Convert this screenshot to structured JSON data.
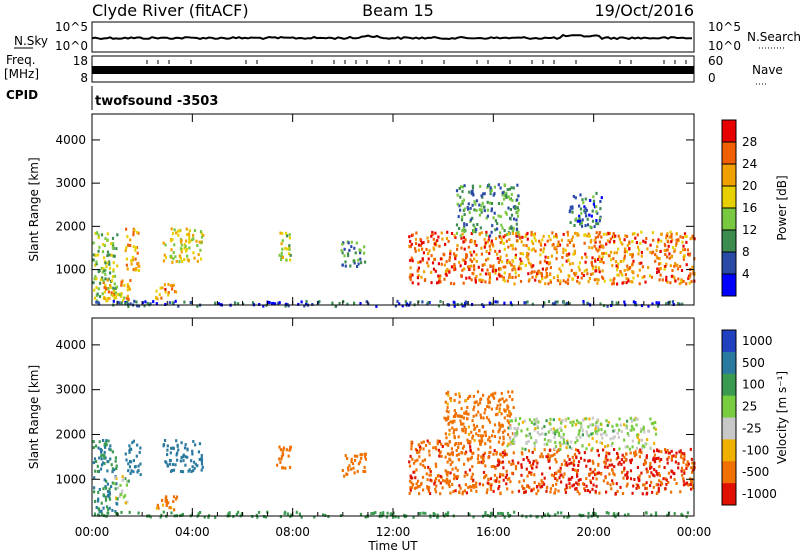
{
  "header": {
    "station": "Clyde River (fitACF)",
    "beam": "Beam 15",
    "date": "19/Oct/2016"
  },
  "strip_nsky": {
    "label": "N.Sky",
    "left_ticks": [
      "10^5",
      "10^0"
    ],
    "right_ticks": [
      "10^5",
      "10^0"
    ],
    "right_label": "N.Search"
  },
  "strip_freq": {
    "label_line1": "Freq.",
    "label_line2": "[MHz]",
    "left_ticks": [
      "18",
      "8"
    ],
    "right_ticks": [
      "60",
      "0"
    ],
    "right_label": "Nave"
  },
  "strip_cpid": {
    "label": "CPID",
    "text": "twofsound -3503"
  },
  "chart_data": [
    {
      "type": "heatmap",
      "parameter": "power",
      "ylabel": "Slant Range [km]",
      "ylim": [
        180,
        4600
      ],
      "yticks": [
        1000,
        2000,
        3000,
        4000
      ],
      "xlim": [
        0,
        24
      ],
      "xticks": [
        0,
        4,
        8,
        12,
        16,
        20,
        24
      ],
      "colorbar": {
        "label": "Power [dB]",
        "range": [
          0,
          32
        ],
        "ticks": [
          "4",
          "8",
          "12",
          "16",
          "20",
          "24",
          "28"
        ],
        "colors": [
          "#0000ff",
          "#2a4aa8",
          "#3c8c50",
          "#78c840",
          "#e8d000",
          "#f0a000",
          "#f06000",
          "#e80000"
        ]
      },
      "regions": [
        {
          "t0": 0.0,
          "t1": 1.0,
          "r0": 300,
          "r1": 1900,
          "value": 14
        },
        {
          "t0": 0.4,
          "t1": 1.5,
          "r0": 200,
          "r1": 800,
          "value": 20
        },
        {
          "t0": 1.3,
          "t1": 1.9,
          "r0": 1000,
          "r1": 2000,
          "value": 22
        },
        {
          "t0": 2.5,
          "t1": 3.4,
          "r0": 350,
          "r1": 700,
          "value": 24
        },
        {
          "t0": 2.8,
          "t1": 4.4,
          "r0": 1200,
          "r1": 2000,
          "value": 18
        },
        {
          "t0": 7.3,
          "t1": 7.9,
          "r0": 1200,
          "r1": 1900,
          "value": 16
        },
        {
          "t0": 9.9,
          "t1": 10.9,
          "r0": 1100,
          "r1": 1700,
          "value": 10
        },
        {
          "t0": 12.6,
          "t1": 16.0,
          "r0": 700,
          "r1": 1900,
          "value": 26
        },
        {
          "t0": 14.5,
          "t1": 17.0,
          "r0": 1800,
          "r1": 3000,
          "value": 10
        },
        {
          "t0": 16.0,
          "t1": 24.0,
          "r0": 700,
          "r1": 1900,
          "value": 24
        },
        {
          "t0": 19.0,
          "t1": 20.3,
          "r0": 2000,
          "r1": 2800,
          "value": 8
        },
        {
          "t0": 0.0,
          "t1": 24.0,
          "r0": 180,
          "r1": 300,
          "value": 6
        }
      ]
    },
    {
      "type": "heatmap",
      "parameter": "velocity",
      "ylabel": "Slant Range [km]",
      "xlabel": "Time UT",
      "ylim": [
        180,
        4600
      ],
      "yticks": [
        1000,
        2000,
        3000,
        4000
      ],
      "xlim": [
        0,
        24
      ],
      "xticks": [
        0,
        4,
        8,
        12,
        16,
        20,
        24
      ],
      "xtick_labels": [
        "00:00",
        "04:00",
        "08:00",
        "12:00",
        "16:00",
        "20:00",
        "00:00"
      ],
      "colorbar": {
        "label": "Velocity [m s⁻¹]",
        "ticks": [
          "1000",
          "500",
          "100",
          "25",
          "-25",
          "-100",
          "-500",
          "-1000"
        ],
        "colors": [
          "#2040c0",
          "#2a7aa0",
          "#3a9a50",
          "#78cc40",
          "#c8c8c8",
          "#f0b000",
          "#f07000",
          "#e01000"
        ]
      },
      "regions": [
        {
          "t0": 0.0,
          "t1": 1.0,
          "r0": 300,
          "r1": 1900,
          "value": 100
        },
        {
          "t0": 0.8,
          "t1": 1.5,
          "r0": 500,
          "r1": 1100,
          "value": 0
        },
        {
          "t0": 1.3,
          "t1": 1.9,
          "r0": 1100,
          "r1": 1900,
          "value": 200
        },
        {
          "t0": 2.5,
          "t1": 3.4,
          "r0": 350,
          "r1": 650,
          "value": -150
        },
        {
          "t0": 2.8,
          "t1": 4.4,
          "r0": 1200,
          "r1": 1900,
          "value": 300
        },
        {
          "t0": 7.3,
          "t1": 7.9,
          "r0": 1200,
          "r1": 1800,
          "value": -200
        },
        {
          "t0": 9.9,
          "t1": 10.9,
          "r0": 1100,
          "r1": 1600,
          "value": -300
        },
        {
          "t0": 12.6,
          "t1": 16.0,
          "r0": 700,
          "r1": 1900,
          "value": -400
        },
        {
          "t0": 14.0,
          "t1": 16.8,
          "r0": 1800,
          "r1": 3000,
          "value": -150
        },
        {
          "t0": 16.0,
          "t1": 24.0,
          "r0": 700,
          "r1": 1700,
          "value": -500
        },
        {
          "t0": 16.5,
          "t1": 22.5,
          "r0": 1700,
          "r1": 2400,
          "value": 0
        },
        {
          "t0": 0.0,
          "t1": 24.0,
          "r0": 180,
          "r1": 300,
          "value": 60
        }
      ]
    }
  ]
}
